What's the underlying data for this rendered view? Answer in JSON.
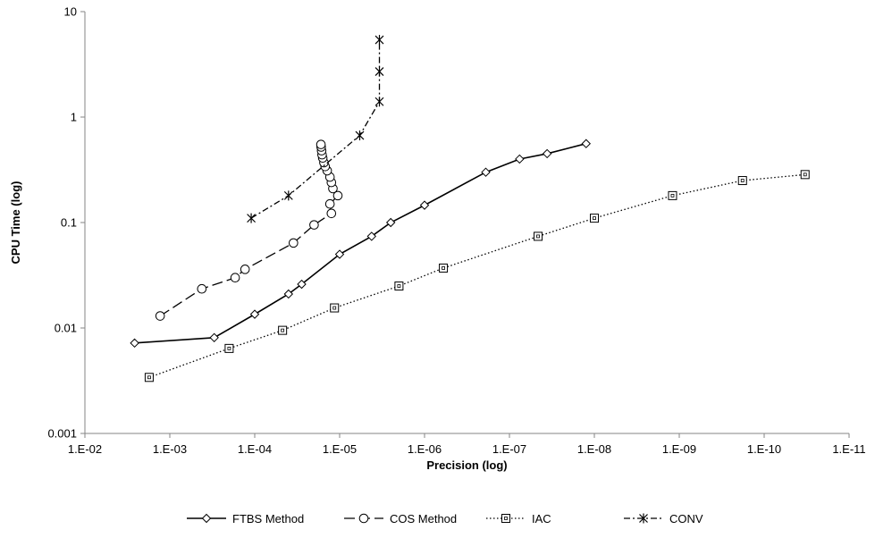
{
  "chart_data": {
    "type": "scatter",
    "title": "",
    "xlabel": "Precision (log)",
    "ylabel": "CPU Time (log)",
    "x_scale": "log",
    "y_scale": "log",
    "x_reversed": true,
    "xlim": [
      0.01,
      1e-11
    ],
    "ylim": [
      0.001,
      10
    ],
    "x_ticks": [
      {
        "value": 0.01,
        "label": "1.E-02"
      },
      {
        "value": 0.001,
        "label": "1.E-03"
      },
      {
        "value": 0.0001,
        "label": "1.E-04"
      },
      {
        "value": 1e-05,
        "label": "1.E-05"
      },
      {
        "value": 1e-06,
        "label": "1.E-06"
      },
      {
        "value": 1e-07,
        "label": "1.E-07"
      },
      {
        "value": 1e-08,
        "label": "1.E-08"
      },
      {
        "value": 1e-09,
        "label": "1.E-09"
      },
      {
        "value": 1e-10,
        "label": "1.E-10"
      },
      {
        "value": 1e-11,
        "label": "1.E-11"
      }
    ],
    "y_ticks": [
      {
        "value": 0.001,
        "label": "0.001"
      },
      {
        "value": 0.01,
        "label": "0.01"
      },
      {
        "value": 0.1,
        "label": "0.1"
      },
      {
        "value": 1,
        "label": "1"
      },
      {
        "value": 10,
        "label": "10"
      }
    ],
    "grid": false,
    "legend_position": "bottom",
    "series": [
      {
        "name": "FTBS Method",
        "marker": "diamond",
        "dash": "solid",
        "color": "#000000",
        "points": [
          [
            0.0026,
            0.0072
          ],
          [
            0.0003,
            0.0081
          ],
          [
            0.0001,
            0.0135
          ],
          [
            4e-05,
            0.021
          ],
          [
            2.8e-05,
            0.026
          ],
          [
            1e-05,
            0.05
          ],
          [
            4.2e-06,
            0.074
          ],
          [
            2.5e-06,
            0.1
          ],
          [
            1e-06,
            0.146
          ],
          [
            1.9e-07,
            0.3
          ],
          [
            7.6e-08,
            0.4
          ],
          [
            3.6e-08,
            0.45
          ],
          [
            1.25e-08,
            0.56
          ]
        ]
      },
      {
        "name": "COS Method",
        "marker": "circle",
        "dash": "longdash",
        "color": "#000000",
        "points": [
          [
            0.0013,
            0.013
          ],
          [
            0.00042,
            0.0235
          ],
          [
            0.00017,
            0.03
          ],
          [
            0.00013,
            0.036
          ],
          [
            3.5e-05,
            0.064
          ],
          [
            2e-05,
            0.095
          ],
          [
            1.25e-05,
            0.122
          ],
          [
            1.3e-05,
            0.15
          ],
          [
            1.05e-05,
            0.18
          ],
          [
            1.2e-05,
            0.21
          ],
          [
            1.25e-05,
            0.24
          ],
          [
            1.3e-05,
            0.27
          ],
          [
            1.4e-05,
            0.31
          ],
          [
            1.48e-05,
            0.34
          ],
          [
            1.53e-05,
            0.37
          ],
          [
            1.58e-05,
            0.41
          ],
          [
            1.61e-05,
            0.44
          ],
          [
            1.63e-05,
            0.48
          ],
          [
            1.65e-05,
            0.52
          ],
          [
            1.66e-05,
            0.55
          ]
        ]
      },
      {
        "name": "IAC",
        "marker": "square",
        "dash": "dotted",
        "color": "#000000",
        "points": [
          [
            0.00175,
            0.0034
          ],
          [
            0.0002,
            0.0064
          ],
          [
            4.7e-05,
            0.0095
          ],
          [
            1.15e-05,
            0.0155
          ],
          [
            2e-06,
            0.025
          ],
          [
            6e-07,
            0.037
          ],
          [
            4.6e-08,
            0.074
          ],
          [
            1e-08,
            0.11
          ],
          [
            1.2e-09,
            0.18
          ],
          [
            1.8e-10,
            0.25
          ],
          [
            3.3e-11,
            0.285
          ]
        ]
      },
      {
        "name": "CONV",
        "marker": "asterisk",
        "dash": "dashdot",
        "color": "#000000",
        "points": [
          [
            0.00011,
            0.11
          ],
          [
            4e-05,
            0.18
          ],
          [
            5.8e-06,
            0.67
          ],
          [
            3.4e-06,
            1.4
          ],
          [
            3.4e-06,
            2.7
          ],
          [
            3.4e-06,
            5.4
          ]
        ]
      }
    ]
  }
}
